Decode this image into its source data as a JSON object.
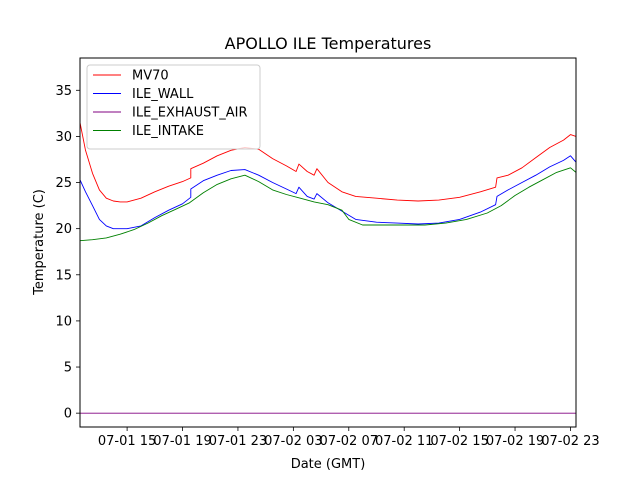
{
  "chart_data": {
    "type": "line",
    "title": "APOLLO ILE Temperatures",
    "xlabel": "Date (GMT)",
    "ylabel": "Temperature (C)",
    "xlim": [
      11.6,
      47.4
    ],
    "ylim": [
      -1.5,
      38.5
    ],
    "grid": false,
    "legend_position": "top-left",
    "x_ticks": [
      {
        "value": 15,
        "label": "07-01 15"
      },
      {
        "value": 19,
        "label": "07-01 19"
      },
      {
        "value": 23,
        "label": "07-01 23"
      },
      {
        "value": 27,
        "label": "07-02 03"
      },
      {
        "value": 31,
        "label": "07-02 07"
      },
      {
        "value": 35,
        "label": "07-02 11"
      },
      {
        "value": 39,
        "label": "07-02 15"
      },
      {
        "value": 43,
        "label": "07-02 19"
      },
      {
        "value": 47,
        "label": "07-02 23"
      }
    ],
    "y_ticks": [
      0,
      5,
      10,
      15,
      20,
      25,
      30,
      35
    ],
    "series": [
      {
        "name": "MV70",
        "color": "#ff0000",
        "x": [
          11.6,
          12.0,
          12.5,
          13.0,
          13.5,
          14.0,
          14.5,
          15.0,
          16.0,
          17.0,
          18.0,
          19.0,
          19.6,
          19.6,
          20.5,
          21.5,
          22.5,
          23.5,
          24.5,
          25.5,
          26.5,
          27.2,
          27.4,
          28.0,
          28.5,
          28.7,
          29.5,
          30.5,
          31.5,
          33.0,
          34.5,
          36.0,
          37.5,
          39.0,
          40.5,
          41.6,
          41.7,
          42.5,
          43.5,
          44.5,
          45.5,
          46.5,
          47.0,
          47.4
        ],
        "y": [
          31.5,
          28.5,
          26.0,
          24.2,
          23.3,
          23.0,
          22.9,
          22.9,
          23.3,
          24.0,
          24.6,
          25.1,
          25.5,
          26.5,
          27.1,
          27.9,
          28.5,
          28.8,
          28.6,
          27.6,
          26.8,
          26.2,
          27.0,
          26.2,
          25.8,
          26.5,
          25.0,
          24.0,
          23.5,
          23.3,
          23.1,
          23.0,
          23.1,
          23.4,
          24.0,
          24.5,
          25.5,
          25.8,
          26.6,
          27.7,
          28.8,
          29.6,
          30.2,
          30.0
        ]
      },
      {
        "name": "ILE_WALL",
        "color": "#0000ff",
        "x": [
          11.6,
          12.0,
          12.5,
          13.0,
          13.5,
          14.0,
          15.0,
          16.0,
          17.0,
          18.0,
          19.0,
          19.6,
          19.6,
          20.5,
          21.5,
          22.5,
          23.5,
          24.5,
          25.5,
          26.5,
          27.2,
          27.4,
          28.0,
          28.5,
          28.7,
          29.5,
          30.5,
          31.5,
          33.0,
          34.5,
          36.0,
          37.5,
          39.0,
          40.5,
          41.6,
          41.7,
          42.5,
          43.5,
          44.5,
          45.5,
          46.5,
          47.0,
          47.4
        ],
        "y": [
          25.3,
          24.0,
          22.5,
          21.0,
          20.3,
          20.0,
          20.0,
          20.3,
          21.2,
          22.0,
          22.7,
          23.4,
          24.3,
          25.2,
          25.8,
          26.3,
          26.4,
          25.8,
          25.0,
          24.3,
          23.8,
          24.5,
          23.5,
          23.2,
          23.8,
          22.8,
          21.9,
          21.0,
          20.7,
          20.6,
          20.5,
          20.6,
          21.0,
          21.8,
          22.6,
          23.5,
          24.2,
          25.0,
          25.8,
          26.7,
          27.4,
          27.9,
          27.2
        ]
      },
      {
        "name": "ILE_EXHAUST_AIR",
        "color": "#800080",
        "x": [
          11.6,
          47.4
        ],
        "y": [
          0.0,
          0.0
        ]
      },
      {
        "name": "ILE_INTAKE",
        "color": "#008000",
        "x": [
          11.6,
          12.5,
          13.5,
          14.5,
          15.5,
          16.5,
          17.5,
          18.5,
          19.5,
          20.5,
          21.5,
          22.5,
          23.5,
          24.5,
          25.5,
          26.5,
          27.5,
          28.5,
          29.5,
          30.5,
          31.0,
          32.0,
          33.5,
          35.0,
          36.5,
          38.0,
          39.5,
          41.0,
          42.0,
          43.0,
          44.0,
          45.0,
          46.0,
          47.0,
          47.4
        ],
        "y": [
          18.7,
          18.8,
          19.0,
          19.4,
          19.9,
          20.6,
          21.4,
          22.1,
          22.8,
          23.9,
          24.8,
          25.4,
          25.8,
          25.1,
          24.2,
          23.7,
          23.3,
          22.9,
          22.6,
          22.0,
          21.0,
          20.4,
          20.4,
          20.4,
          20.4,
          20.6,
          21.0,
          21.7,
          22.5,
          23.6,
          24.5,
          25.3,
          26.1,
          26.6,
          26.1
        ]
      }
    ]
  }
}
